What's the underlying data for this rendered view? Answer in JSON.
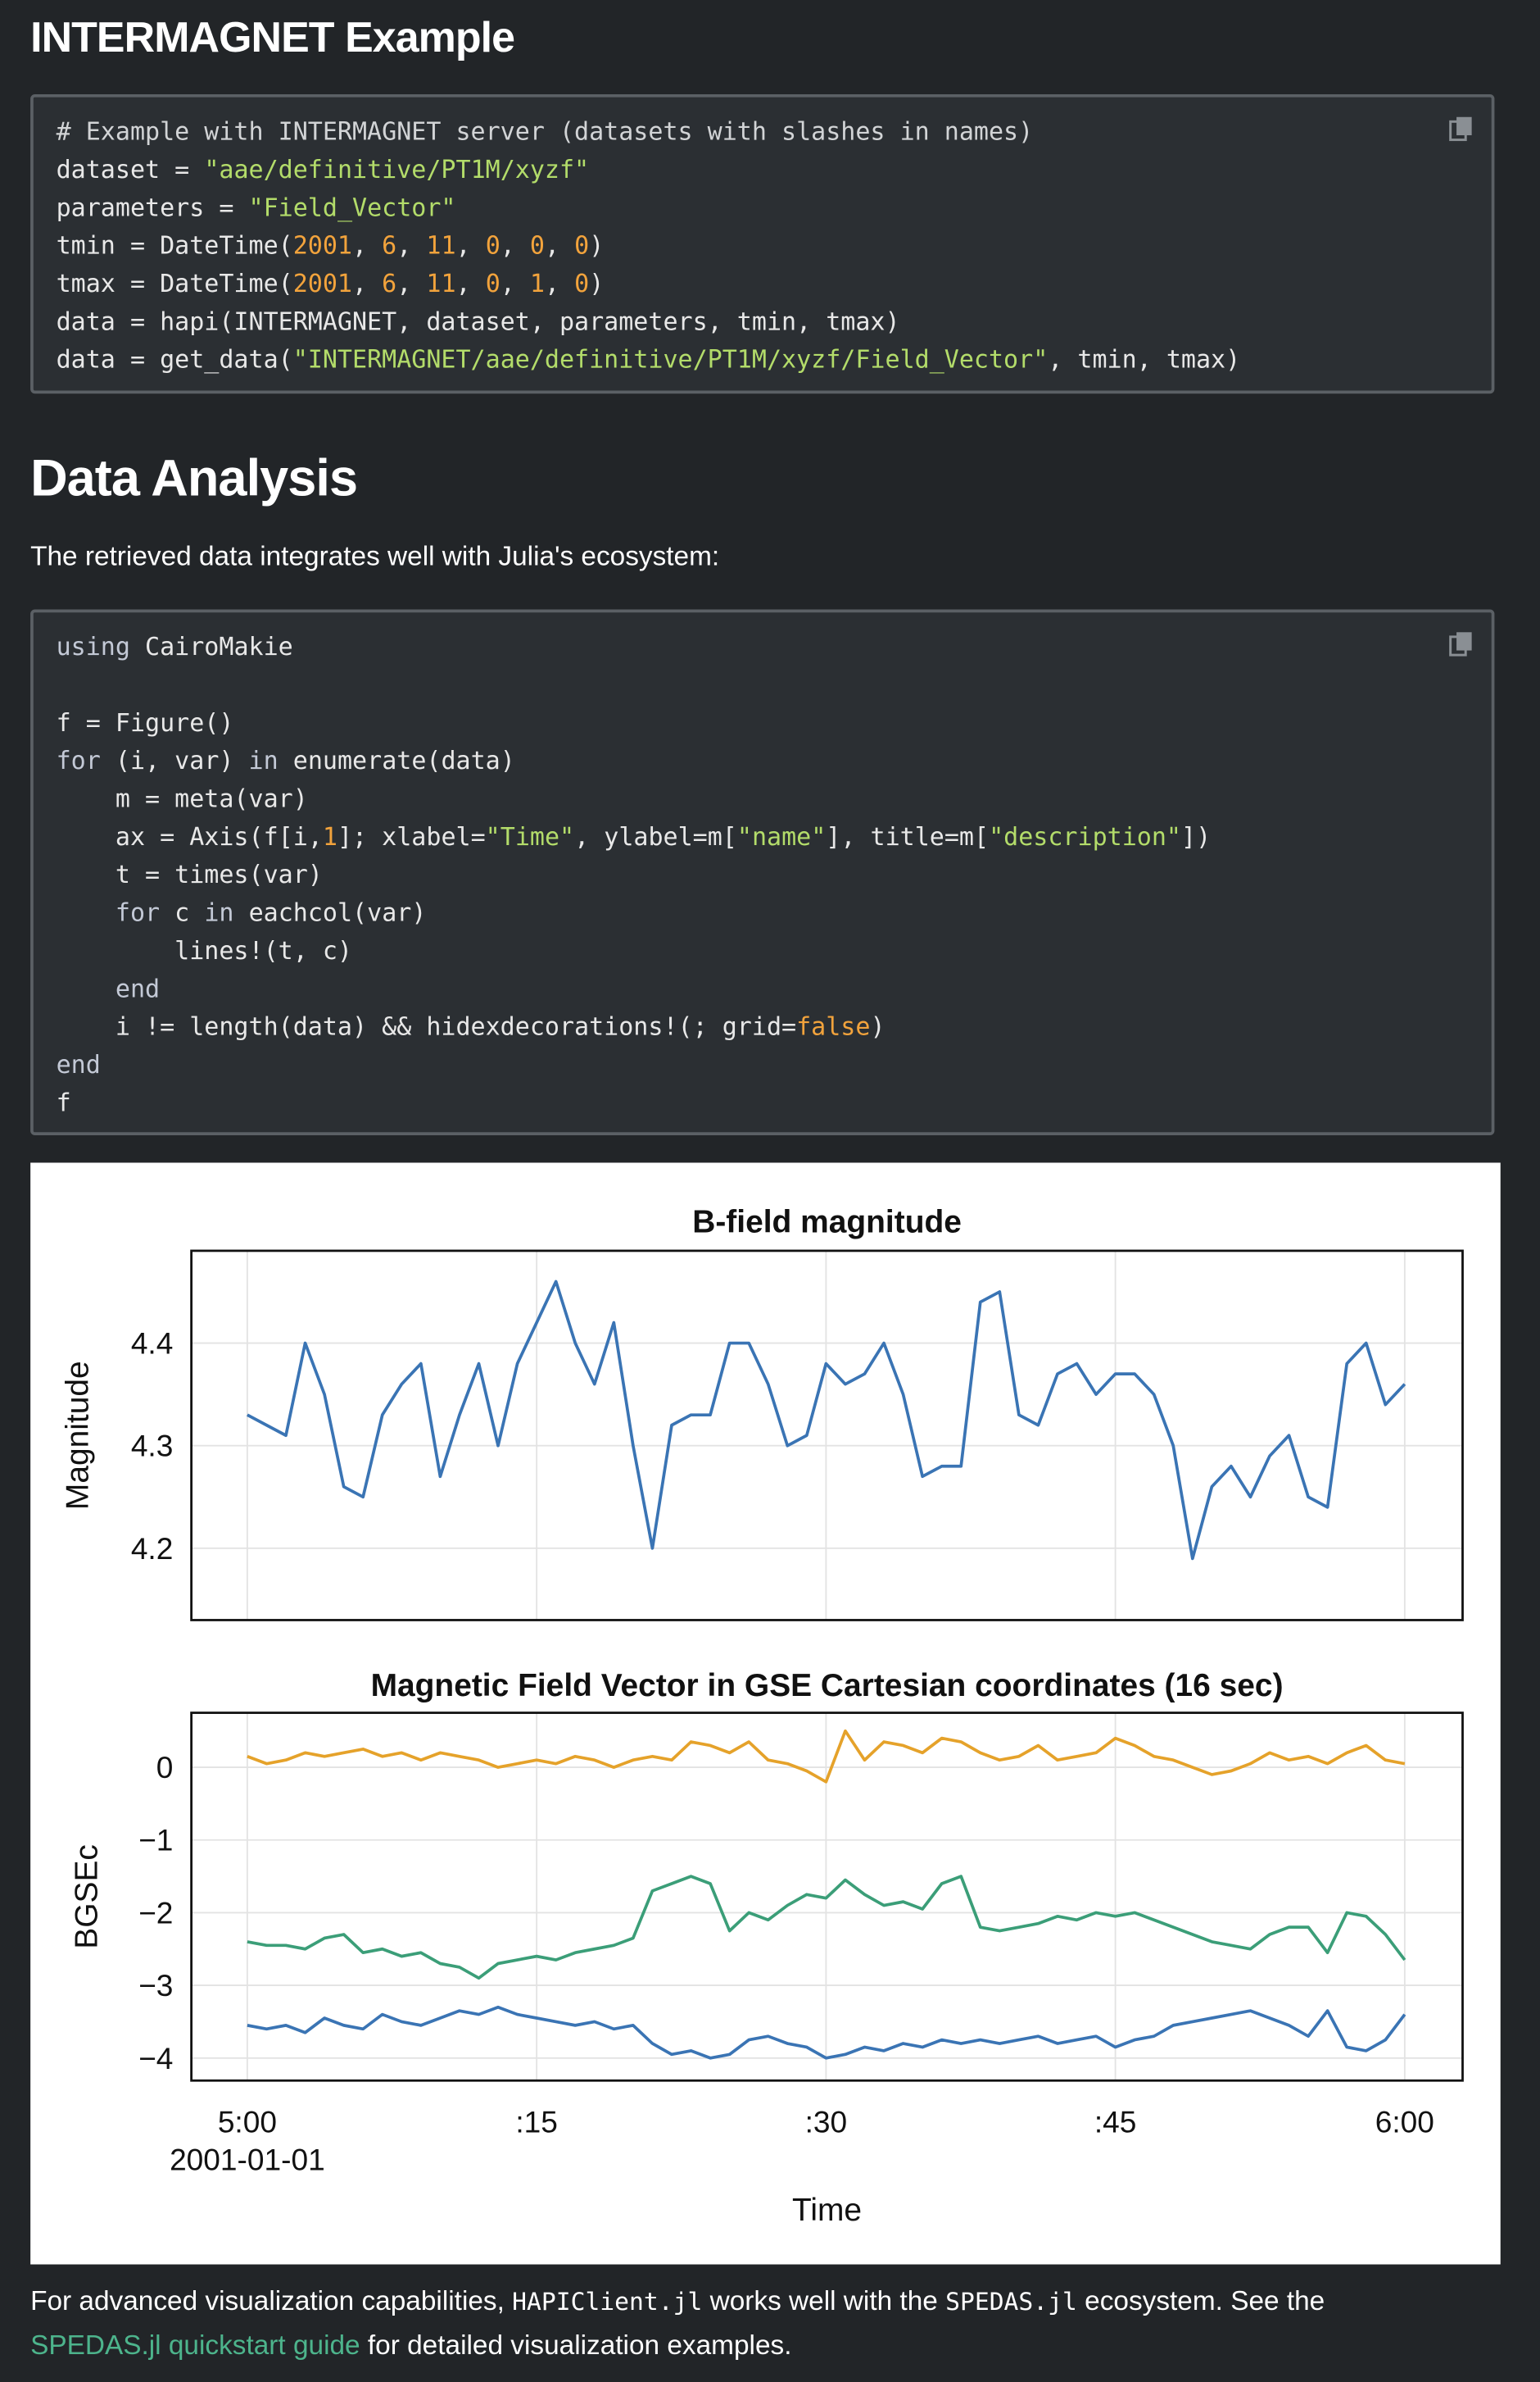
{
  "heading1": "INTERMAGNET Example",
  "code1": {
    "lines": [
      [
        "# Example with INTERMAGNET server (datasets with slashes in names)"
      ],
      [
        "dataset = ",
        "\"aae/definitive/PT1M/xyzf\""
      ],
      [
        "parameters = ",
        "\"Field_Vector\""
      ],
      [
        "tmin = DateTime(",
        "2001",
        ", ",
        "6",
        ", ",
        "11",
        ", ",
        "0",
        ", ",
        "0",
        ", ",
        "0",
        ")"
      ],
      [
        "tmax = DateTime(",
        "2001",
        ", ",
        "6",
        ", ",
        "11",
        ", ",
        "0",
        ", ",
        "1",
        ", ",
        "0",
        ")"
      ],
      [
        "data = hapi(INTERMAGNET, dataset, parameters, tmin, tmax)"
      ],
      [
        "data = get_data(",
        "\"INTERMAGNET/aae/definitive/PT1M/xyzf/Field_Vector\"",
        ", tmin, tmax)"
      ]
    ]
  },
  "heading2": "Data Analysis",
  "intro": "The retrieved data integrates well with Julia's ecosystem:",
  "code2": {
    "lines": [
      [
        "using",
        " CairoMakie"
      ],
      [],
      [
        "f = Figure()"
      ],
      [
        "for",
        " (i, var) ",
        "in",
        " enumerate(data)"
      ],
      [
        "    m = meta(var)"
      ],
      [
        "    ax = Axis(f[i,",
        "1",
        "]; xlabel=",
        "\"Time\"",
        ", ylabel=m[",
        "\"name\"",
        "], title=m[",
        "\"description\"",
        "])"
      ],
      [
        "    t = times(var)"
      ],
      [
        "    ",
        "for",
        " c ",
        "in",
        " eachcol(var)"
      ],
      [
        "        lines!(t, c)"
      ],
      [
        "    ",
        "end"
      ],
      [
        "    i != length(data) && hidexdecorations!(; grid=",
        "false",
        ")"
      ],
      [
        "end"
      ],
      [
        "f"
      ]
    ]
  },
  "chart_data": [
    {
      "type": "line",
      "title": "B-field magnitude",
      "ylabel": "Magnitude",
      "x": [
        0,
        1,
        2,
        3,
        4,
        5,
        6,
        7,
        8,
        9,
        10,
        11,
        12,
        13,
        14,
        15,
        16,
        17,
        18,
        19,
        20,
        21,
        22,
        23,
        24,
        25,
        26,
        27,
        28,
        29,
        30,
        31,
        32,
        33,
        34,
        35,
        36,
        37,
        38,
        39,
        40,
        41,
        42,
        43,
        44,
        45,
        46,
        47,
        48,
        49,
        50,
        51,
        52,
        53,
        54,
        55,
        56,
        57,
        58,
        59,
        60
      ],
      "values": [
        4.33,
        4.32,
        4.31,
        4.4,
        4.35,
        4.26,
        4.25,
        4.33,
        4.36,
        4.38,
        4.27,
        4.33,
        4.38,
        4.3,
        4.38,
        4.42,
        4.46,
        4.4,
        4.36,
        4.42,
        4.3,
        4.2,
        4.32,
        4.33,
        4.33,
        4.4,
        4.4,
        4.36,
        4.3,
        4.31,
        4.38,
        4.36,
        4.37,
        4.4,
        4.35,
        4.27,
        4.28,
        4.28,
        4.44,
        4.45,
        4.33,
        4.32,
        4.37,
        4.38,
        4.35,
        4.37,
        4.37,
        4.35,
        4.3,
        4.19,
        4.26,
        4.28,
        4.25,
        4.29,
        4.31,
        4.25,
        4.24,
        4.38,
        4.4,
        4.34,
        4.36
      ],
      "color": "#3a74b4",
      "xlim": [
        -2.9,
        63
      ],
      "xticks": [
        0,
        15,
        30,
        45,
        60
      ],
      "ylim": [
        4.13,
        4.49
      ],
      "yticks": [
        4.2,
        4.3,
        4.4
      ],
      "grid": true
    },
    {
      "type": "line",
      "title": "Magnetic Field Vector in GSE Cartesian coordinates (16 sec)",
      "ylabel": "BGSEc",
      "xlabel": "Time",
      "x_date": "2001-01-01",
      "x": [
        0,
        1,
        2,
        3,
        4,
        5,
        6,
        7,
        8,
        9,
        10,
        11,
        12,
        13,
        14,
        15,
        16,
        17,
        18,
        19,
        20,
        21,
        22,
        23,
        24,
        25,
        26,
        27,
        28,
        29,
        30,
        31,
        32,
        33,
        34,
        35,
        36,
        37,
        38,
        39,
        40,
        41,
        42,
        43,
        44,
        45,
        46,
        47,
        48,
        49,
        50,
        51,
        52,
        53,
        54,
        55,
        56,
        57,
        58,
        59,
        60
      ],
      "series": [
        {
          "color": "#3a74b4",
          "values": [
            -3.55,
            -3.6,
            -3.55,
            -3.65,
            -3.45,
            -3.55,
            -3.6,
            -3.4,
            -3.5,
            -3.55,
            -3.45,
            -3.35,
            -3.4,
            -3.3,
            -3.4,
            -3.45,
            -3.5,
            -3.55,
            -3.5,
            -3.6,
            -3.55,
            -3.8,
            -3.95,
            -3.9,
            -4.0,
            -3.95,
            -3.75,
            -3.7,
            -3.8,
            -3.85,
            -4.0,
            -3.95,
            -3.85,
            -3.9,
            -3.8,
            -3.85,
            -3.75,
            -3.8,
            -3.75,
            -3.8,
            -3.75,
            -3.7,
            -3.8,
            -3.75,
            -3.7,
            -3.85,
            -3.75,
            -3.7,
            -3.55,
            -3.5,
            -3.45,
            -3.4,
            -3.35,
            -3.45,
            -3.55,
            -3.7,
            -3.35,
            -3.85,
            -3.9,
            -3.75,
            -3.4
          ]
        },
        {
          "color": "#e5a22a",
          "values": [
            0.15,
            0.05,
            0.1,
            0.2,
            0.15,
            0.2,
            0.25,
            0.15,
            0.2,
            0.1,
            0.2,
            0.15,
            0.1,
            0.0,
            0.05,
            0.1,
            0.05,
            0.15,
            0.1,
            0.0,
            0.1,
            0.15,
            0.1,
            0.35,
            0.3,
            0.2,
            0.35,
            0.1,
            0.05,
            -0.05,
            -0.2,
            0.5,
            0.1,
            0.35,
            0.3,
            0.2,
            0.4,
            0.35,
            0.2,
            0.1,
            0.15,
            0.3,
            0.1,
            0.15,
            0.2,
            0.4,
            0.3,
            0.15,
            0.1,
            0.0,
            -0.1,
            -0.05,
            0.05,
            0.2,
            0.1,
            0.15,
            0.05,
            0.2,
            0.3,
            0.1,
            0.05
          ]
        },
        {
          "color": "#3b9e78",
          "values": [
            -2.4,
            -2.45,
            -2.45,
            -2.5,
            -2.35,
            -2.3,
            -2.55,
            -2.5,
            -2.6,
            -2.55,
            -2.7,
            -2.75,
            -2.9,
            -2.7,
            -2.65,
            -2.6,
            -2.65,
            -2.55,
            -2.5,
            -2.45,
            -2.35,
            -1.7,
            -1.6,
            -1.5,
            -1.6,
            -2.25,
            -2.0,
            -2.1,
            -1.9,
            -1.75,
            -1.8,
            -1.55,
            -1.75,
            -1.9,
            -1.85,
            -1.95,
            -1.6,
            -1.5,
            -2.2,
            -2.25,
            -2.2,
            -2.15,
            -2.05,
            -2.1,
            -2.0,
            -2.05,
            -2.0,
            -2.1,
            -2.2,
            -2.3,
            -2.4,
            -2.45,
            -2.5,
            -2.3,
            -2.2,
            -2.2,
            -2.55,
            -2.0,
            -2.05,
            -2.3,
            -2.65
          ]
        }
      ],
      "xlim": [
        -2.9,
        63
      ],
      "xticks": [
        {
          "value": 0,
          "label": "5:00"
        },
        {
          "value": 15,
          "label": ":15"
        },
        {
          "value": 30,
          "label": ":30"
        },
        {
          "value": 45,
          "label": ":45"
        },
        {
          "value": 60,
          "label": "6:00"
        }
      ],
      "ylim": [
        -4.31,
        0.75
      ],
      "yticks": [
        0,
        {
          "value": -1,
          "label": "−1"
        },
        {
          "value": -2,
          "label": "−2"
        },
        {
          "value": -3,
          "label": "−3"
        },
        {
          "value": -4,
          "label": "−4"
        }
      ],
      "grid": true
    }
  ],
  "footer": {
    "parts": [
      "For advanced visualization capabilities, ",
      "HAPIClient.jl",
      " works well with the ",
      "SPEDAS.jl",
      " ecosystem. See the",
      "SPEDAS.jl quickstart guide",
      " for detailed visualization examples."
    ]
  }
}
